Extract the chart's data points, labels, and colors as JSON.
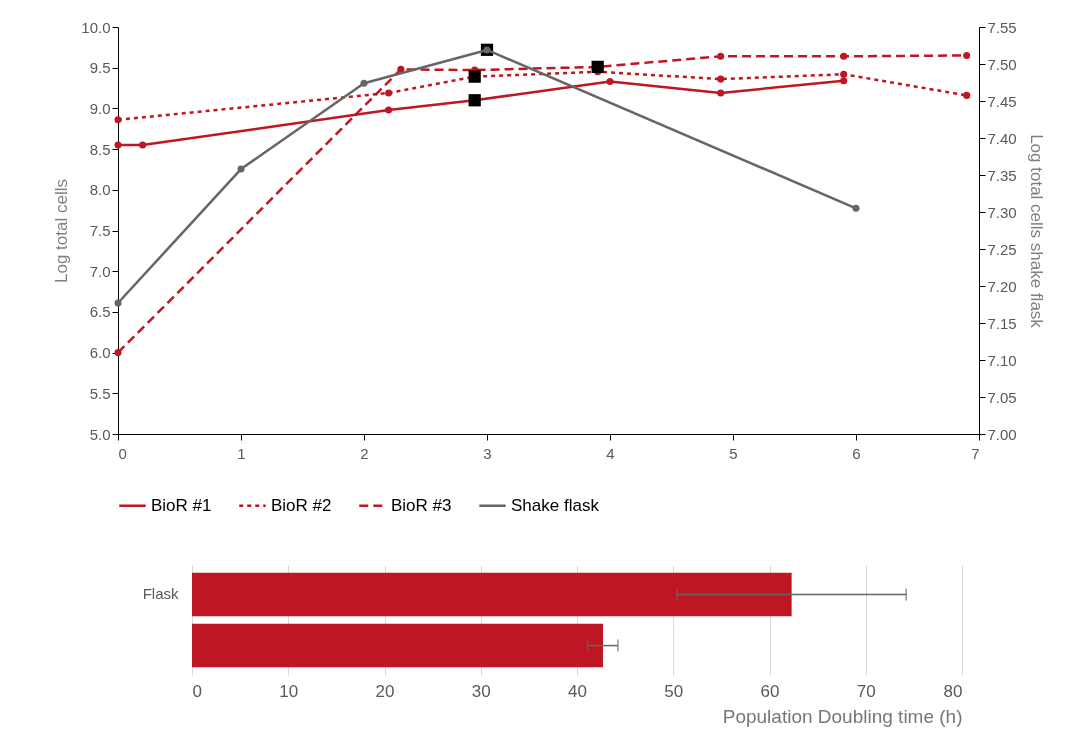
{
  "chart_data": [
    {
      "type": "line",
      "ylabel": "Log total cells",
      "y2label": "Log total cells shake flask",
      "xlim": [
        0,
        7
      ],
      "xticks": [
        0,
        1,
        2,
        3,
        4,
        5,
        6,
        7
      ],
      "ylim": [
        5,
        10
      ],
      "yticks": [
        {
          "value": 5,
          "label": "5.0"
        },
        {
          "value": 5.5,
          "label": "5.5"
        },
        {
          "value": 6,
          "label": "6.0"
        },
        {
          "value": 6.5,
          "label": "6.5"
        },
        {
          "value": 7,
          "label": "7.0"
        },
        {
          "value": 7.5,
          "label": "7.5"
        },
        {
          "value": 8,
          "label": "8.0"
        },
        {
          "value": 8.5,
          "label": "8.5"
        },
        {
          "value": 9,
          "label": "9.0"
        },
        {
          "value": 9.5,
          "label": "9.5"
        },
        {
          "value": 10,
          "label": "10.0"
        }
      ],
      "y2lim": [
        7,
        7.55
      ],
      "y2ticks": [
        {
          "value": 7,
          "label": "7.00"
        },
        {
          "value": 7.05,
          "label": "7.05"
        },
        {
          "value": 7.1,
          "label": "7.10"
        },
        {
          "value": 7.15,
          "label": "7.15"
        },
        {
          "value": 7.2,
          "label": "7.20"
        },
        {
          "value": 7.25,
          "label": "7.25"
        },
        {
          "value": 7.3,
          "label": "7.30"
        },
        {
          "value": 7.35,
          "label": "7.35"
        },
        {
          "value": 7.4,
          "label": "7.40"
        },
        {
          "value": 7.45,
          "label": "7.45"
        },
        {
          "value": 7.5,
          "label": "7.50"
        },
        {
          "value": 7.55,
          "label": "7.55"
        }
      ],
      "legend": "bottom",
      "marker": "circle",
      "series": [
        {
          "name": "BioR #1",
          "color": "#be1622",
          "line_style": "solid",
          "x": [
            0,
            0.2,
            2.2,
            2.9,
            4.0,
            4.9,
            5.9
          ],
          "values": [
            8.55,
            8.55,
            8.98,
            9.1,
            9.33,
            9.19,
            9.34
          ]
        },
        {
          "name": "BioR #2",
          "color": "#be1622",
          "line_style": "dotted",
          "x": [
            0,
            2.2,
            2.9,
            3.9,
            4.9,
            5.9,
            6.9
          ],
          "values": [
            8.86,
            9.19,
            9.39,
            9.45,
            9.36,
            9.42,
            9.16
          ]
        },
        {
          "name": "BioR #3",
          "color": "#be1622",
          "line_style": "dashed",
          "x": [
            0,
            2.3,
            2.9,
            3.9,
            4.9,
            5.9,
            6.9
          ],
          "values": [
            6.0,
            9.48,
            9.47,
            9.51,
            9.64,
            9.64,
            9.65
          ]
        },
        {
          "name": "Shake flask",
          "color": "#666666",
          "line_style": "solid",
          "axis": "y2",
          "x": [
            0,
            1,
            2,
            3,
            6
          ],
          "values": [
            7.177,
            7.358,
            7.474,
            7.519,
            7.305
          ]
        },
        {
          "type": "scatter",
          "color": "#000000",
          "marker": "square",
          "x": [
            2.9,
            2.9,
            3.0,
            3.9
          ],
          "values": [
            9.1,
            9.39,
            9.72,
            9.51
          ]
        }
      ]
    },
    {
      "type": "bar",
      "orientation": "horizontal",
      "categories": [
        "Flask",
        null
      ],
      "values": [
        62.3,
        42.7
      ],
      "errors": [
        [
          50.4,
          74.2
        ],
        [
          41.1,
          44.25
        ]
      ],
      "color": "#be1622",
      "xlim": [
        0,
        80
      ],
      "xticks": [
        0,
        10,
        20,
        30,
        40,
        50,
        60,
        70,
        80
      ],
      "xlabel": "Population Doubling time (h)",
      "grid": "x"
    }
  ]
}
